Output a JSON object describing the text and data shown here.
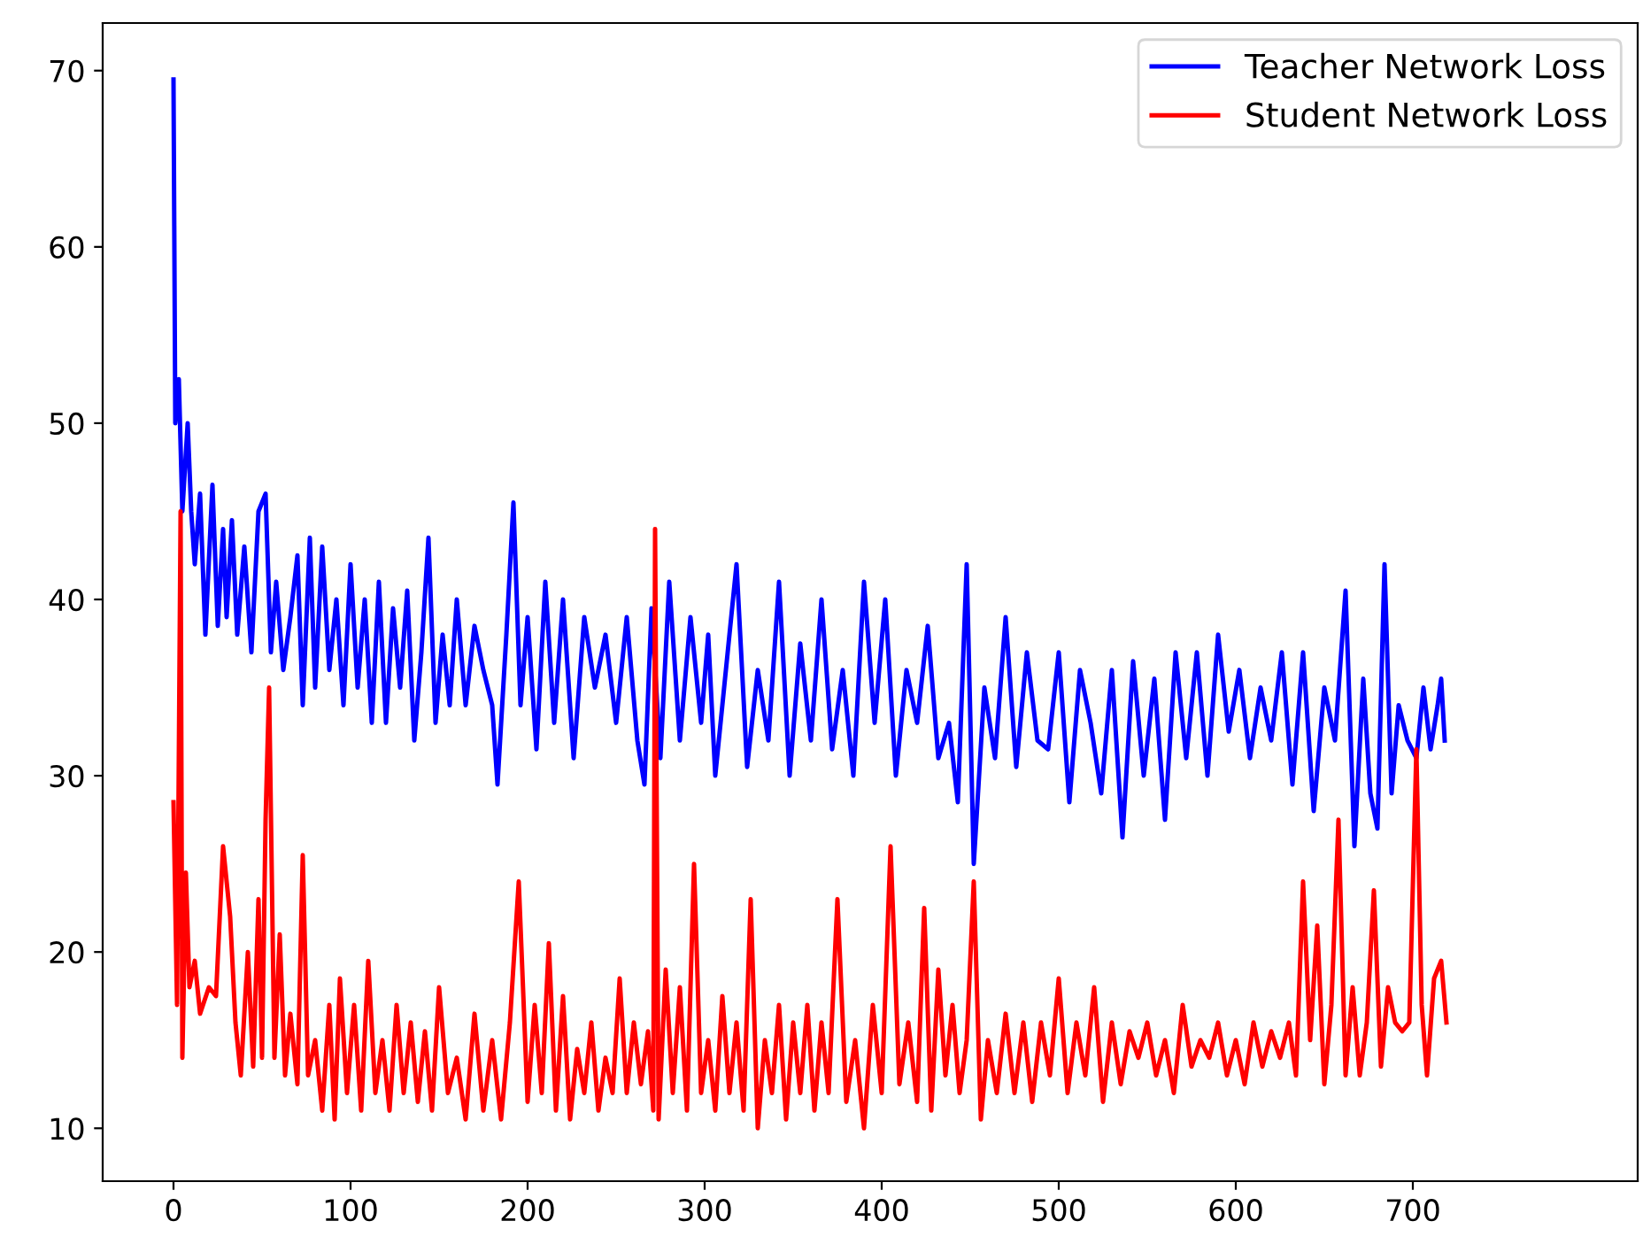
{
  "chart_data": {
    "type": "line",
    "xlim": [
      -40,
      827
    ],
    "ylim": [
      7,
      72.7
    ],
    "xticks": [
      0,
      100,
      200,
      300,
      400,
      500,
      600,
      700
    ],
    "yticks": [
      10,
      20,
      30,
      40,
      50,
      60,
      70
    ],
    "legend": "top right",
    "grid": false,
    "series": [
      {
        "name": "Teacher Network Loss",
        "color": "#0000ff",
        "x": [
          0,
          1,
          3,
          5,
          8,
          10,
          12,
          15,
          18,
          22,
          25,
          28,
          30,
          33,
          36,
          40,
          44,
          48,
          52,
          55,
          58,
          62,
          66,
          70,
          73,
          77,
          80,
          84,
          88,
          92,
          96,
          100,
          104,
          108,
          112,
          116,
          120,
          124,
          128,
          132,
          136,
          140,
          144,
          148,
          152,
          156,
          160,
          165,
          170,
          175,
          180,
          183,
          188,
          192,
          196,
          200,
          205,
          210,
          215,
          220,
          226,
          232,
          238,
          244,
          250,
          256,
          262,
          266,
          270,
          275,
          280,
          286,
          292,
          298,
          302,
          306,
          312,
          318,
          324,
          330,
          336,
          342,
          348,
          354,
          360,
          366,
          372,
          378,
          384,
          390,
          396,
          402,
          408,
          414,
          420,
          426,
          432,
          438,
          443,
          448,
          452,
          458,
          464,
          470,
          476,
          482,
          488,
          494,
          500,
          506,
          512,
          518,
          524,
          530,
          536,
          542,
          548,
          554,
          560,
          566,
          572,
          578,
          584,
          590,
          596,
          602,
          608,
          614,
          620,
          626,
          632,
          638,
          644,
          650,
          656,
          662,
          667,
          672,
          676,
          680,
          684,
          688,
          692,
          697,
          702,
          706,
          710,
          714,
          716,
          718
        ],
        "values": [
          69.5,
          50,
          52.5,
          45,
          50,
          45,
          42,
          46,
          38,
          46.5,
          38.5,
          44,
          39,
          44.5,
          38,
          43,
          37,
          45,
          46,
          37,
          41,
          36,
          39,
          42.5,
          34,
          43.5,
          35,
          43,
          36,
          40,
          34,
          42,
          35,
          40,
          33,
          41,
          33,
          39.5,
          35,
          40.5,
          32,
          37,
          43.5,
          33,
          38,
          34,
          40,
          34,
          38.5,
          36,
          34,
          29.5,
          38,
          45.5,
          34,
          39,
          31.5,
          41,
          33,
          40,
          31,
          39,
          35,
          38,
          33,
          39,
          32,
          29.5,
          39.5,
          31,
          41,
          32,
          39,
          33,
          38,
          30,
          36,
          42,
          30.5,
          36,
          32,
          41,
          30,
          37.5,
          32,
          40,
          31.5,
          36,
          30,
          41,
          33,
          40,
          30,
          36,
          33,
          38.5,
          31,
          33,
          28.5,
          42,
          25,
          35,
          31,
          39,
          30.5,
          37,
          32,
          31.5,
          37,
          28.5,
          36,
          33,
          29,
          36,
          26.5,
          36.5,
          30,
          35.5,
          27.5,
          37,
          31,
          37,
          30,
          38,
          32.5,
          36,
          31,
          35,
          32,
          37,
          29.5,
          37,
          28,
          35,
          32,
          40.5,
          26,
          35.5,
          29,
          27,
          42,
          29,
          34,
          32,
          31,
          35,
          31.5,
          34,
          35.5,
          32
        ]
      },
      {
        "name": "Student Network Loss",
        "color": "#ff0000",
        "x": [
          0,
          2,
          4,
          5,
          7,
          9,
          12,
          15,
          20,
          24,
          28,
          32,
          35,
          38,
          42,
          45,
          48,
          50,
          52,
          54,
          57,
          60,
          63,
          66,
          70,
          73,
          76,
          80,
          84,
          88,
          91,
          94,
          98,
          102,
          106,
          110,
          114,
          118,
          122,
          126,
          130,
          134,
          138,
          142,
          146,
          150,
          155,
          160,
          165,
          170,
          175,
          180,
          185,
          190,
          195,
          200,
          204,
          208,
          212,
          216,
          220,
          224,
          228,
          232,
          236,
          240,
          244,
          248,
          252,
          256,
          260,
          264,
          268,
          271,
          272,
          274,
          278,
          282,
          286,
          290,
          294,
          298,
          302,
          306,
          310,
          314,
          318,
          322,
          326,
          330,
          334,
          338,
          342,
          346,
          350,
          354,
          358,
          362,
          366,
          370,
          375,
          380,
          385,
          390,
          395,
          400,
          405,
          410,
          415,
          420,
          424,
          428,
          432,
          436,
          440,
          444,
          448,
          452,
          456,
          460,
          465,
          470,
          475,
          480,
          485,
          490,
          495,
          500,
          505,
          510,
          515,
          520,
          525,
          530,
          535,
          540,
          545,
          550,
          555,
          560,
          565,
          570,
          575,
          580,
          585,
          590,
          595,
          600,
          605,
          610,
          615,
          620,
          625,
          630,
          634,
          638,
          642,
          646,
          650,
          654,
          658,
          662,
          666,
          670,
          674,
          678,
          682,
          686,
          690,
          694,
          698,
          702,
          705,
          708,
          712,
          716,
          719
        ],
        "values": [
          28.5,
          17,
          45,
          14,
          24.5,
          18,
          19.5,
          16.5,
          18,
          17.5,
          26,
          22,
          16,
          13,
          20,
          13.5,
          23,
          14,
          27.5,
          35,
          14,
          21,
          13,
          16.5,
          12.5,
          25.5,
          13,
          15,
          11,
          17,
          10.5,
          18.5,
          12,
          17,
          11,
          19.5,
          12,
          15,
          11,
          17,
          12,
          16,
          11.5,
          15.5,
          11,
          18,
          12,
          14,
          10.5,
          16.5,
          11,
          15,
          10.5,
          16,
          24,
          11.5,
          17,
          12,
          20.5,
          11,
          17.5,
          10.5,
          14.5,
          12,
          16,
          11,
          14,
          12,
          18.5,
          12,
          16,
          12.5,
          15.5,
          11,
          44,
          10.5,
          19,
          12,
          18,
          11,
          25,
          12,
          15,
          11,
          17.5,
          12,
          16,
          11,
          23,
          10,
          15,
          12,
          17,
          10.5,
          16,
          12,
          17,
          11,
          16,
          12,
          23,
          11.5,
          15,
          10,
          17,
          12,
          26,
          12.5,
          16,
          11.5,
          22.5,
          11,
          19,
          13,
          17,
          12,
          15,
          24,
          10.5,
          15,
          12,
          16.5,
          12,
          16,
          11.5,
          16,
          13,
          18.5,
          12,
          16,
          13,
          18,
          11.5,
          16,
          12.5,
          15.5,
          14,
          16,
          13,
          15,
          12,
          17,
          13.5,
          15,
          14,
          16,
          13,
          15,
          12.5,
          16,
          13.5,
          15.5,
          14,
          16,
          13,
          24,
          15,
          21.5,
          12.5,
          17,
          27.5,
          13,
          18,
          13,
          16,
          23.5,
          13.5,
          18,
          16,
          15.5,
          16,
          31.5,
          17,
          13,
          18.5,
          19.5,
          16
        ]
      }
    ]
  }
}
